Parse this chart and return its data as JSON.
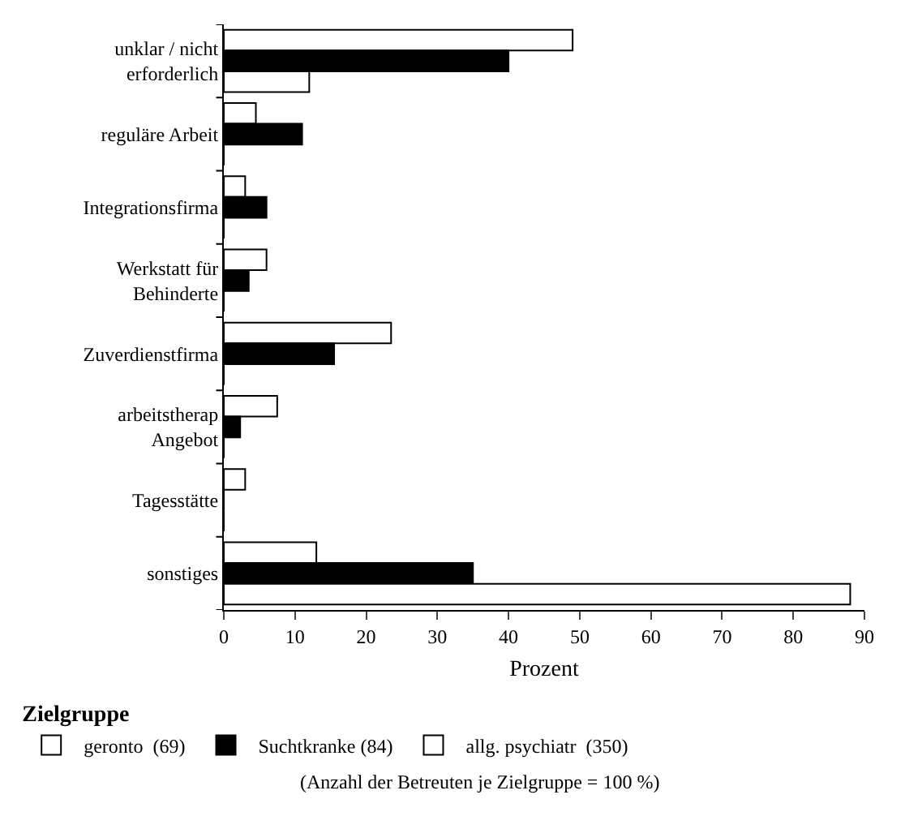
{
  "chart_data": {
    "type": "bar",
    "orientation": "horizontal",
    "xlabel": "Prozent",
    "legend_title": "Zielgruppe",
    "legend": "bottom",
    "categories": [
      "unklar / nicht erforderlich",
      "reguläre Arbeit",
      "Integrationsfirma",
      "Werkstatt für Behinderte",
      "Zuverdienstfirma",
      "arbeitstherap Angebot",
      "Tagesstätte",
      "sonstiges"
    ],
    "series": [
      {
        "name": "geronto  (69)",
        "color": "#ffffff",
        "values": [
          12,
          0,
          0,
          0,
          0,
          0,
          0,
          88
        ]
      },
      {
        "name": "Suchtkranke (84)",
        "color": "#000000",
        "values": [
          40,
          11,
          6,
          3.5,
          15.5,
          2.3,
          0,
          35
        ]
      },
      {
        "name": "allg. psychiatr  (350)",
        "color": "#ffffff",
        "values": [
          49,
          4.5,
          3,
          6,
          23.5,
          7.5,
          3,
          13
        ]
      }
    ],
    "xlim": [
      0,
      90
    ],
    "xticks": [
      0,
      10,
      20,
      30,
      40,
      50,
      60,
      70,
      80,
      90
    ],
    "annotations": [
      "(Anzahl der Betreuten je Zielgruppe = 100 %)"
    ]
  }
}
